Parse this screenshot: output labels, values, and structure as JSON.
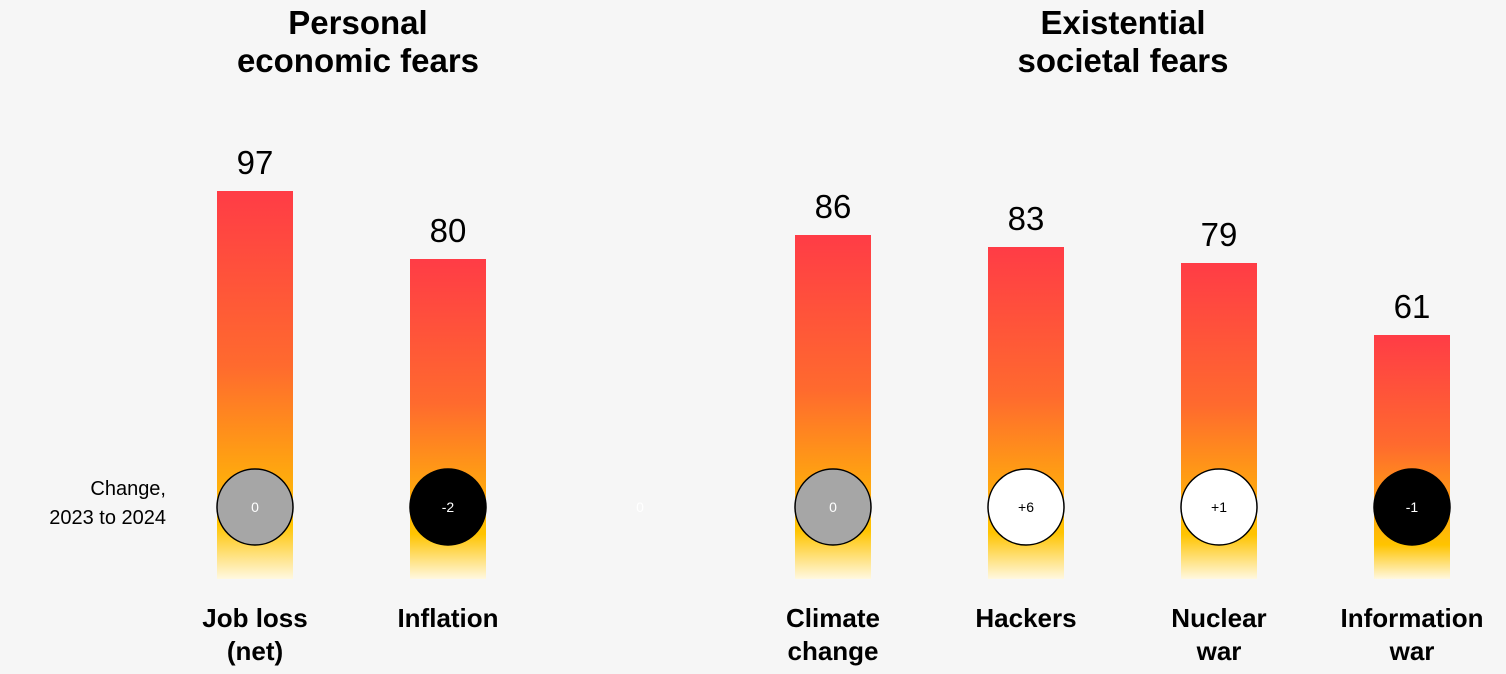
{
  "chart_data": {
    "type": "bar",
    "change_label": [
      "Change,",
      "2023 to 2024"
    ],
    "groups": [
      {
        "title": [
          "Personal",
          "economic fears"
        ],
        "bars": [
          {
            "label": [
              "Job loss",
              "(net)"
            ],
            "value": 97,
            "change": "0",
            "change_style": "neutral"
          },
          {
            "label": [
              "Inflation"
            ],
            "value": 80,
            "change": "-2",
            "change_style": "decrease"
          }
        ]
      },
      {
        "title": [
          "Existential",
          "societal fears"
        ],
        "bars": [
          {
            "label": [
              "Climate",
              "change"
            ],
            "value": 86,
            "change": "0",
            "change_style": "neutral"
          },
          {
            "label": [
              "Hackers"
            ],
            "value": 83,
            "change": "+6",
            "change_style": "increase"
          },
          {
            "label": [
              "Nuclear",
              "war"
            ],
            "value": 79,
            "change": "+1",
            "change_style": "increase"
          },
          {
            "label": [
              "Information",
              "war"
            ],
            "value": 61,
            "change": "-1",
            "change_style": "decrease"
          }
        ]
      }
    ],
    "spacer_label": "0",
    "gradient_colors": [
      "#ff3c46",
      "#ff6a2e",
      "#ffc400",
      "#fff8e0"
    ],
    "badge_colors": {
      "neutral": {
        "fill": "#a6a6a6",
        "text": "#ffffff"
      },
      "decrease": {
        "fill": "#000000",
        "text": "#ffffff"
      },
      "increase": {
        "fill": "#ffffff",
        "text": "#000000"
      }
    }
  }
}
